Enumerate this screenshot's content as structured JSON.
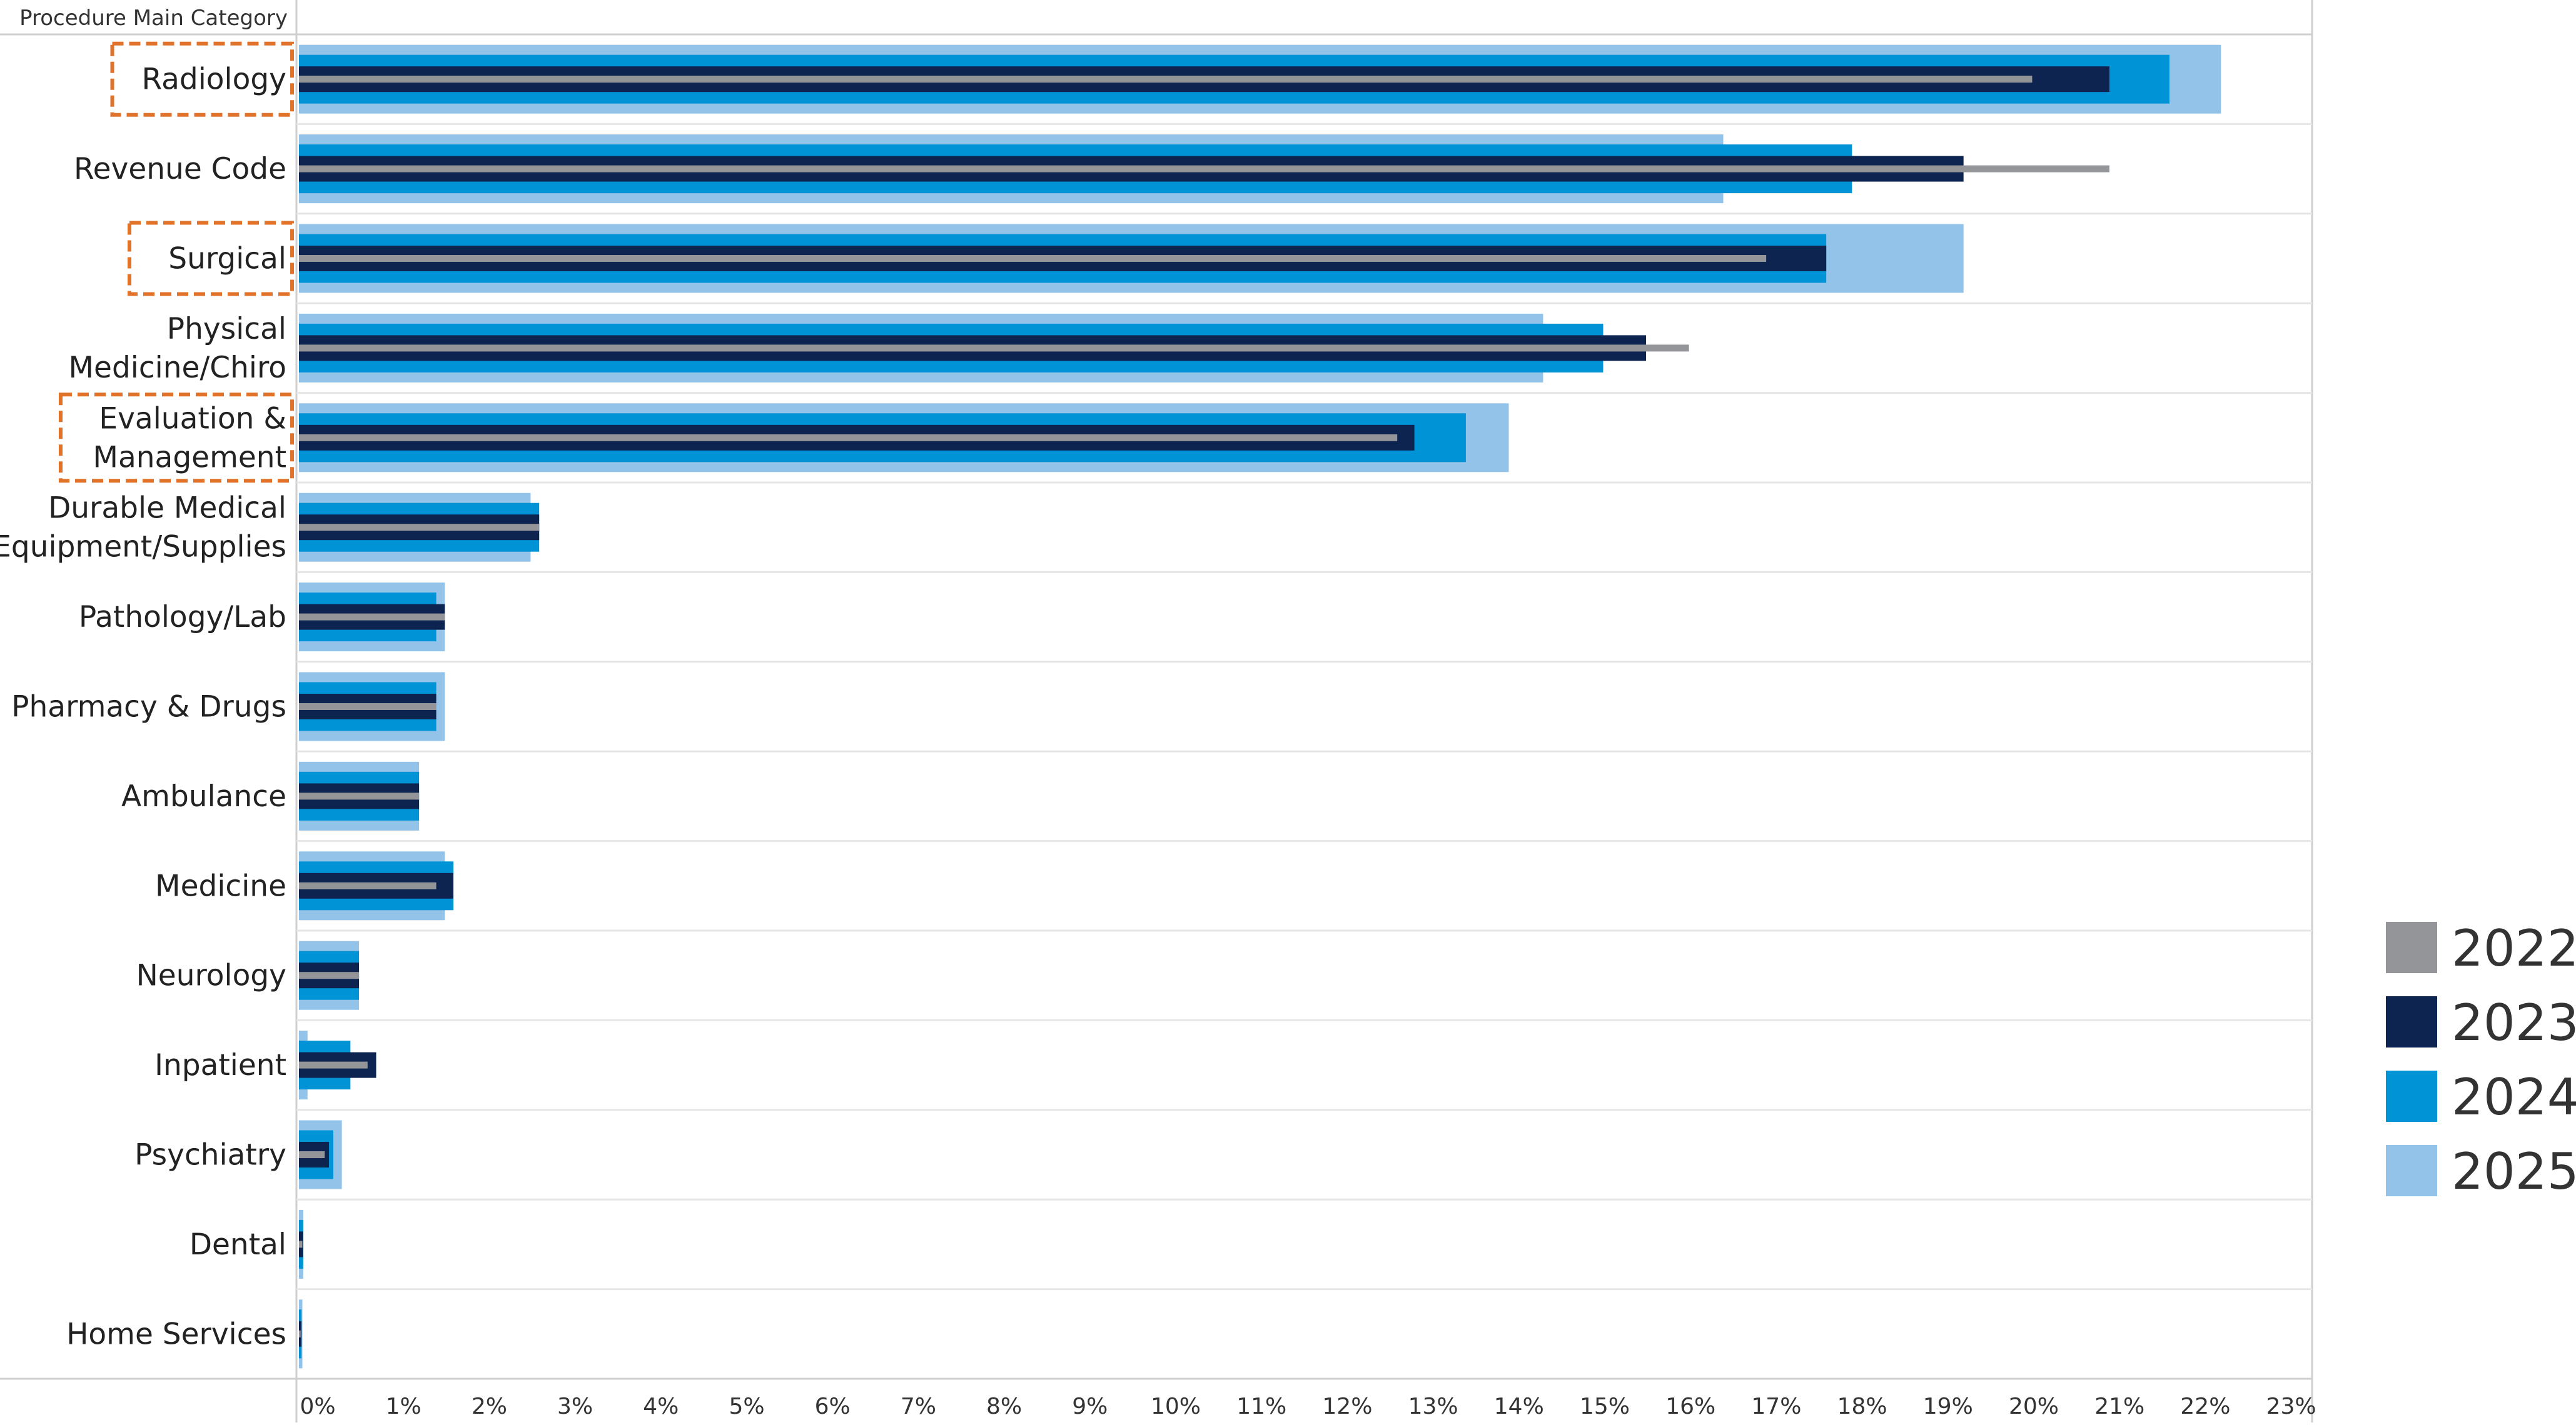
{
  "chart_data": {
    "type": "bar",
    "orientation": "horizontal",
    "variant": "nested-overlapping",
    "header_label": "Procedure Main Category",
    "categories": [
      "Radiology",
      "Revenue Code",
      "Surgical",
      "Physical Medicine/Chiro",
      "Evaluation & Management",
      "Durable Medical Equipment/Supplies",
      "Pathology/Lab",
      "Pharmacy & Drugs",
      "Ambulance",
      "Medicine",
      "Neurology",
      "Inpatient",
      "Psychiatry",
      "Dental",
      "Home Services"
    ],
    "category_lines": [
      [
        "Radiology"
      ],
      [
        "Revenue Code"
      ],
      [
        "Surgical"
      ],
      [
        "Physical",
        "Medicine/Chiro"
      ],
      [
        "Evaluation &",
        "Management"
      ],
      [
        "Durable Medical",
        "Equipment/Supplies"
      ],
      [
        "Pathology/Lab"
      ],
      [
        "Pharmacy & Drugs"
      ],
      [
        "Ambulance"
      ],
      [
        "Medicine"
      ],
      [
        "Neurology"
      ],
      [
        "Inpatient"
      ],
      [
        "Psychiatry"
      ],
      [
        "Dental"
      ],
      [
        "Home Services"
      ]
    ],
    "highlighted_categories": [
      "Radiology",
      "Surgical",
      "Evaluation & Management"
    ],
    "series": [
      {
        "name": "2022",
        "color": "#939598",
        "values": [
          20.2,
          21.1,
          17.1,
          16.2,
          12.8,
          2.8,
          1.7,
          1.6,
          1.4,
          1.6,
          0.7,
          0.8,
          0.3,
          0.04,
          0.02
        ]
      },
      {
        "name": "2023",
        "color": "#0d2451",
        "values": [
          21.1,
          19.4,
          17.8,
          15.7,
          13.0,
          2.8,
          1.7,
          1.6,
          1.4,
          1.8,
          0.7,
          0.9,
          0.35,
          0.05,
          0.03
        ]
      },
      {
        "name": "2024",
        "color": "#0093d6",
        "values": [
          21.8,
          18.1,
          17.8,
          15.2,
          13.6,
          2.8,
          1.6,
          1.6,
          1.4,
          1.8,
          0.7,
          0.6,
          0.4,
          0.05,
          0.03
        ]
      },
      {
        "name": "2025",
        "color": "#93c3e8",
        "values": [
          22.4,
          16.6,
          19.4,
          14.5,
          14.1,
          2.7,
          1.7,
          1.7,
          1.4,
          1.7,
          0.7,
          0.1,
          0.5,
          0.05,
          0.04
        ]
      }
    ],
    "xlim": [
      0,
      23.6
    ],
    "x_ticks": [
      "0%",
      "1%",
      "2%",
      "3%",
      "4%",
      "5%",
      "6%",
      "7%",
      "8%",
      "9%",
      "10%",
      "11%",
      "12%",
      "13%",
      "14%",
      "15%",
      "16%",
      "17%",
      "18%",
      "19%",
      "20%",
      "21%",
      "22%",
      "23%"
    ],
    "x_tick_values": [
      0,
      1,
      2,
      3,
      4,
      5,
      6,
      7,
      8,
      9,
      10,
      11,
      12,
      13,
      14,
      15,
      16,
      17,
      18,
      19,
      20,
      21,
      22,
      23
    ],
    "legend": [
      "2022",
      "2023",
      "2024",
      "2025"
    ],
    "legend_position": "right",
    "highlight_color": "#e0722a",
    "grid": false
  }
}
